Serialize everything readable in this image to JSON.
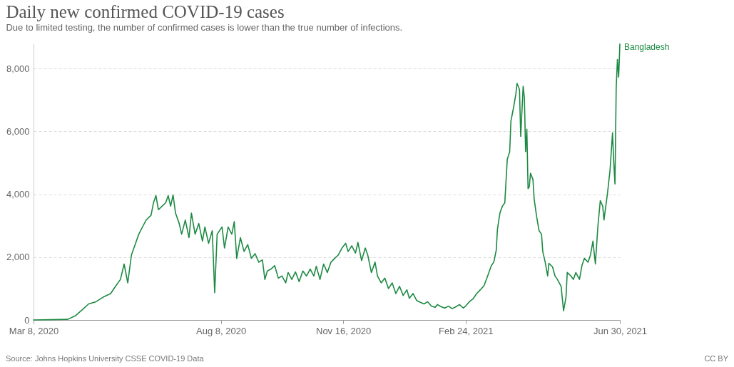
{
  "chart_data": {
    "type": "line",
    "title": "Daily new confirmed COVID-19 cases",
    "subtitle": "Due to limited testing, the number of confirmed cases is lower than the true number of infections.",
    "annotations": [
      "Source: Johns Hopkins University CSSE COVID-19 Data",
      "CC BY"
    ],
    "x": [
      "2020-03-08",
      "2020-04-05",
      "2020-04-11",
      "2020-04-17",
      "2020-04-22",
      "2020-04-28",
      "2020-05-04",
      "2020-05-10",
      "2020-05-14",
      "2020-05-18",
      "2020-05-21",
      "2020-05-24",
      "2020-05-27",
      "2020-05-30",
      "2020-06-02",
      "2020-06-05",
      "2020-06-08",
      "2020-06-12",
      "2020-06-14",
      "2020-06-16",
      "2020-06-18",
      "2020-06-21",
      "2020-06-24",
      "2020-06-26",
      "2020-06-28",
      "2020-06-30",
      "2020-07-02",
      "2020-07-05",
      "2020-07-07",
      "2020-07-10",
      "2020-07-13",
      "2020-07-15",
      "2020-07-18",
      "2020-07-21",
      "2020-07-24",
      "2020-07-26",
      "2020-07-29",
      "2020-08-01",
      "2020-08-03",
      "2020-08-05",
      "2020-08-09",
      "2020-08-11",
      "2020-08-14",
      "2020-08-17",
      "2020-08-19",
      "2020-08-21",
      "2020-08-24",
      "2020-08-27",
      "2020-08-30",
      "2020-09-02",
      "2020-09-05",
      "2020-09-08",
      "2020-09-11",
      "2020-09-13",
      "2020-09-15",
      "2020-09-18",
      "2020-09-21",
      "2020-09-24",
      "2020-09-27",
      "2020-09-30",
      "2020-10-02",
      "2020-10-05",
      "2020-10-08",
      "2020-10-11",
      "2020-10-14",
      "2020-10-17",
      "2020-10-20",
      "2020-10-23",
      "2020-10-25",
      "2020-10-28",
      "2020-10-31",
      "2020-11-03",
      "2020-11-06",
      "2020-11-09",
      "2020-11-12",
      "2020-11-15",
      "2020-11-18",
      "2020-11-20",
      "2020-11-23",
      "2020-11-26",
      "2020-11-28",
      "2020-12-01",
      "2020-12-04",
      "2020-12-06",
      "2020-12-09",
      "2020-12-12",
      "2020-12-14",
      "2020-12-17",
      "2020-12-20",
      "2020-12-23",
      "2020-12-26",
      "2020-12-29",
      "2021-01-01",
      "2021-01-04",
      "2021-01-07",
      "2021-01-09",
      "2021-01-12",
      "2021-01-15",
      "2021-01-18",
      "2021-01-21",
      "2021-01-24",
      "2021-01-27",
      "2021-01-30",
      "2021-02-01",
      "2021-02-04",
      "2021-02-07",
      "2021-02-10",
      "2021-02-13",
      "2021-02-16",
      "2021-02-19",
      "2021-02-22",
      "2021-02-24",
      "2021-02-27",
      "2021-03-02",
      "2021-03-05",
      "2021-03-08",
      "2021-03-11",
      "2021-03-14",
      "2021-03-17",
      "2021-03-19",
      "2021-03-21",
      "2021-03-22",
      "2021-03-24",
      "2021-03-26",
      "2021-03-28",
      "2021-03-30",
      "2021-04-01",
      "2021-04-02",
      "2021-04-04",
      "2021-04-06",
      "2021-04-07",
      "2021-04-09",
      "2021-04-10",
      "2021-04-12",
      "2021-04-13",
      "2021-04-14",
      "2021-04-15",
      "2021-04-16",
      "2021-04-17",
      "2021-04-18",
      "2021-04-20",
      "2021-04-21",
      "2021-04-23",
      "2021-04-25",
      "2021-04-27",
      "2021-04-28",
      "2021-04-30",
      "2021-05-02",
      "2021-05-03",
      "2021-05-06",
      "2021-05-08",
      "2021-05-10",
      "2021-05-13",
      "2021-05-15",
      "2021-05-17",
      "2021-05-18",
      "2021-05-21",
      "2021-05-23",
      "2021-05-25",
      "2021-05-28",
      "2021-05-30",
      "2021-06-01",
      "2021-06-04",
      "2021-06-06",
      "2021-06-08",
      "2021-06-10",
      "2021-06-12",
      "2021-06-14",
      "2021-06-16",
      "2021-06-17",
      "2021-06-20",
      "2021-06-22",
      "2021-06-24",
      "2021-06-25",
      "2021-06-26",
      "2021-06-27",
      "2021-06-28",
      "2021-06-29",
      "2021-06-30"
    ],
    "series": [
      {
        "name": "Bangladesh",
        "color": "#1d8a43",
        "values": [
          0,
          20,
          130,
          330,
          510,
          580,
          730,
          840,
          1070,
          1290,
          1780,
          1180,
          2070,
          2400,
          2730,
          2960,
          3180,
          3330,
          3730,
          3960,
          3510,
          3620,
          3730,
          3960,
          3620,
          3980,
          3400,
          3070,
          2730,
          3180,
          2620,
          3400,
          2730,
          3070,
          2510,
          2960,
          2440,
          2840,
          870,
          2730,
          2960,
          2290,
          2960,
          2730,
          3130,
          1960,
          2620,
          2180,
          2400,
          1960,
          2110,
          1840,
          1910,
          1290,
          1560,
          1620,
          1730,
          1330,
          1400,
          1180,
          1510,
          1290,
          1530,
          1220,
          1560,
          1400,
          1620,
          1400,
          1710,
          1290,
          1780,
          1510,
          1840,
          1960,
          2070,
          2290,
          2440,
          2180,
          2360,
          2130,
          2470,
          1890,
          2290,
          2070,
          1510,
          1840,
          1400,
          1180,
          1330,
          1000,
          1180,
          840,
          1070,
          780,
          960,
          690,
          840,
          620,
          560,
          510,
          580,
          440,
          400,
          490,
          420,
          380,
          440,
          360,
          420,
          490,
          380,
          440,
          580,
          670,
          840,
          960,
          1090,
          1400,
          1730,
          1840,
          2220,
          2890,
          3400,
          3620,
          3730,
          5110,
          5360,
          6330,
          6730,
          7180,
          7530,
          7330,
          5840,
          7440,
          7070,
          5360,
          6070,
          4180,
          4240,
          4670,
          4470,
          3840,
          3290,
          2840,
          2730,
          2180,
          1840,
          1400,
          1800,
          1690,
          1400,
          1290,
          1070,
          290,
          730,
          1510,
          1400,
          1290,
          1510,
          1290,
          1730,
          1960,
          1840,
          2070,
          2510,
          1780,
          2960,
          3800,
          3620,
          3180,
          4070,
          4780,
          5960,
          5020,
          4330,
          7400,
          8290,
          7730,
          8780
        ]
      }
    ],
    "xlim": [
      "2020-03-08",
      "2021-06-30"
    ],
    "xticks": [
      {
        "value": "2020-03-08",
        "label": "Mar 8, 2020"
      },
      {
        "value": "2020-08-08",
        "label": "Aug 8, 2020"
      },
      {
        "value": "2020-11-16",
        "label": "Nov 16, 2020"
      },
      {
        "value": "2021-02-24",
        "label": "Feb 24, 2021"
      },
      {
        "value": "2021-06-30",
        "label": "Jun 30, 2021"
      }
    ],
    "ylim": [
      0,
      8800
    ],
    "yticks": [
      0,
      {
        "value": 2000,
        "label": "2,000"
      },
      {
        "value": 4000,
        "label": "4,000"
      },
      {
        "value": 6000,
        "label": "6,000"
      },
      {
        "value": 8000,
        "label": "8,000"
      }
    ],
    "grid": "y",
    "line_style": "solid"
  }
}
